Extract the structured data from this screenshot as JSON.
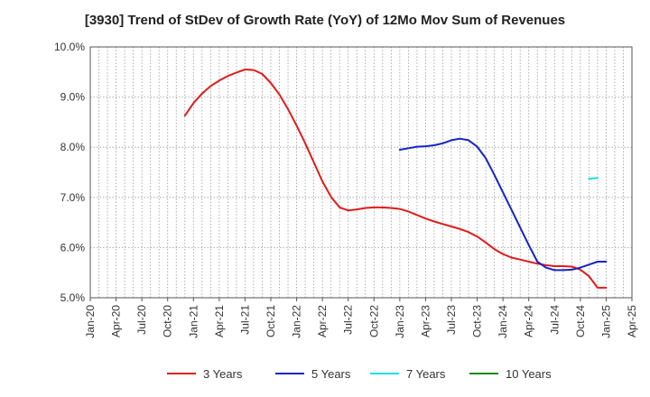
{
  "chart_data": {
    "type": "line",
    "title": "[3930]  Trend of StDev of Growth Rate (YoY) of 12Mo Mov Sum of Revenues",
    "xlabel": "",
    "ylabel": "",
    "ylim": [
      5.0,
      10.0
    ],
    "y_ticks": [
      5.0,
      6.0,
      7.0,
      8.0,
      9.0,
      10.0
    ],
    "y_tick_labels": [
      "5.0%",
      "6.0%",
      "7.0%",
      "8.0%",
      "9.0%",
      "10.0%"
    ],
    "x_tick_labels": [
      "Jan-20",
      "Apr-20",
      "Jul-20",
      "Oct-20",
      "Jan-21",
      "Apr-21",
      "Jul-21",
      "Oct-21",
      "Jan-22",
      "Apr-22",
      "Jul-22",
      "Oct-22",
      "Jan-23",
      "Apr-23",
      "Jul-23",
      "Oct-23",
      "Jan-24",
      "Apr-24",
      "Jul-24",
      "Oct-24",
      "Jan-25",
      "Apr-25"
    ],
    "x_unit": "months since Jan-20",
    "xlim": [
      0,
      63
    ],
    "grid": true,
    "legend_position": "bottom",
    "series": [
      {
        "name": "3 Years",
        "color": "#e01b1b",
        "x": [
          11,
          12,
          13,
          14,
          15,
          16,
          17,
          18,
          19,
          20,
          21,
          22,
          23,
          24,
          25,
          26,
          27,
          28,
          29,
          30,
          31,
          32,
          33,
          34,
          35,
          36,
          37,
          38,
          39,
          40,
          41,
          42,
          43,
          44,
          45,
          46,
          47,
          48,
          49,
          50,
          51,
          52,
          53,
          54,
          55,
          56,
          57,
          58,
          59,
          60
        ],
        "values": [
          8.63,
          8.88,
          9.07,
          9.22,
          9.33,
          9.42,
          9.49,
          9.55,
          9.54,
          9.46,
          9.28,
          9.05,
          8.76,
          8.43,
          8.08,
          7.7,
          7.32,
          7.01,
          6.8,
          6.74,
          6.76,
          6.79,
          6.8,
          6.8,
          6.79,
          6.77,
          6.72,
          6.65,
          6.58,
          6.52,
          6.47,
          6.42,
          6.37,
          6.31,
          6.22,
          6.1,
          5.97,
          5.87,
          5.8,
          5.76,
          5.72,
          5.68,
          5.65,
          5.63,
          5.63,
          5.62,
          5.56,
          5.43,
          5.2,
          5.2
        ]
      },
      {
        "name": "5 Years",
        "color": "#1524c4",
        "x": [
          36,
          37,
          38,
          39,
          40,
          41,
          42,
          43,
          44,
          45,
          46,
          47,
          48,
          49,
          50,
          51,
          52,
          53,
          54,
          55,
          56,
          57,
          58,
          59,
          60
        ],
        "values": [
          7.95,
          7.98,
          8.01,
          8.02,
          8.04,
          8.08,
          8.14,
          8.17,
          8.14,
          8.01,
          7.78,
          7.45,
          7.1,
          6.75,
          6.4,
          6.05,
          5.72,
          5.6,
          5.55,
          5.55,
          5.56,
          5.6,
          5.66,
          5.72,
          5.72
        ]
      },
      {
        "name": "7 Years",
        "color": "#19e0e0",
        "x": [
          58,
          59
        ],
        "values": [
          7.37,
          7.39
        ]
      },
      {
        "name": "10 Years",
        "color": "#1a8a1a",
        "x": [],
        "values": []
      }
    ]
  }
}
